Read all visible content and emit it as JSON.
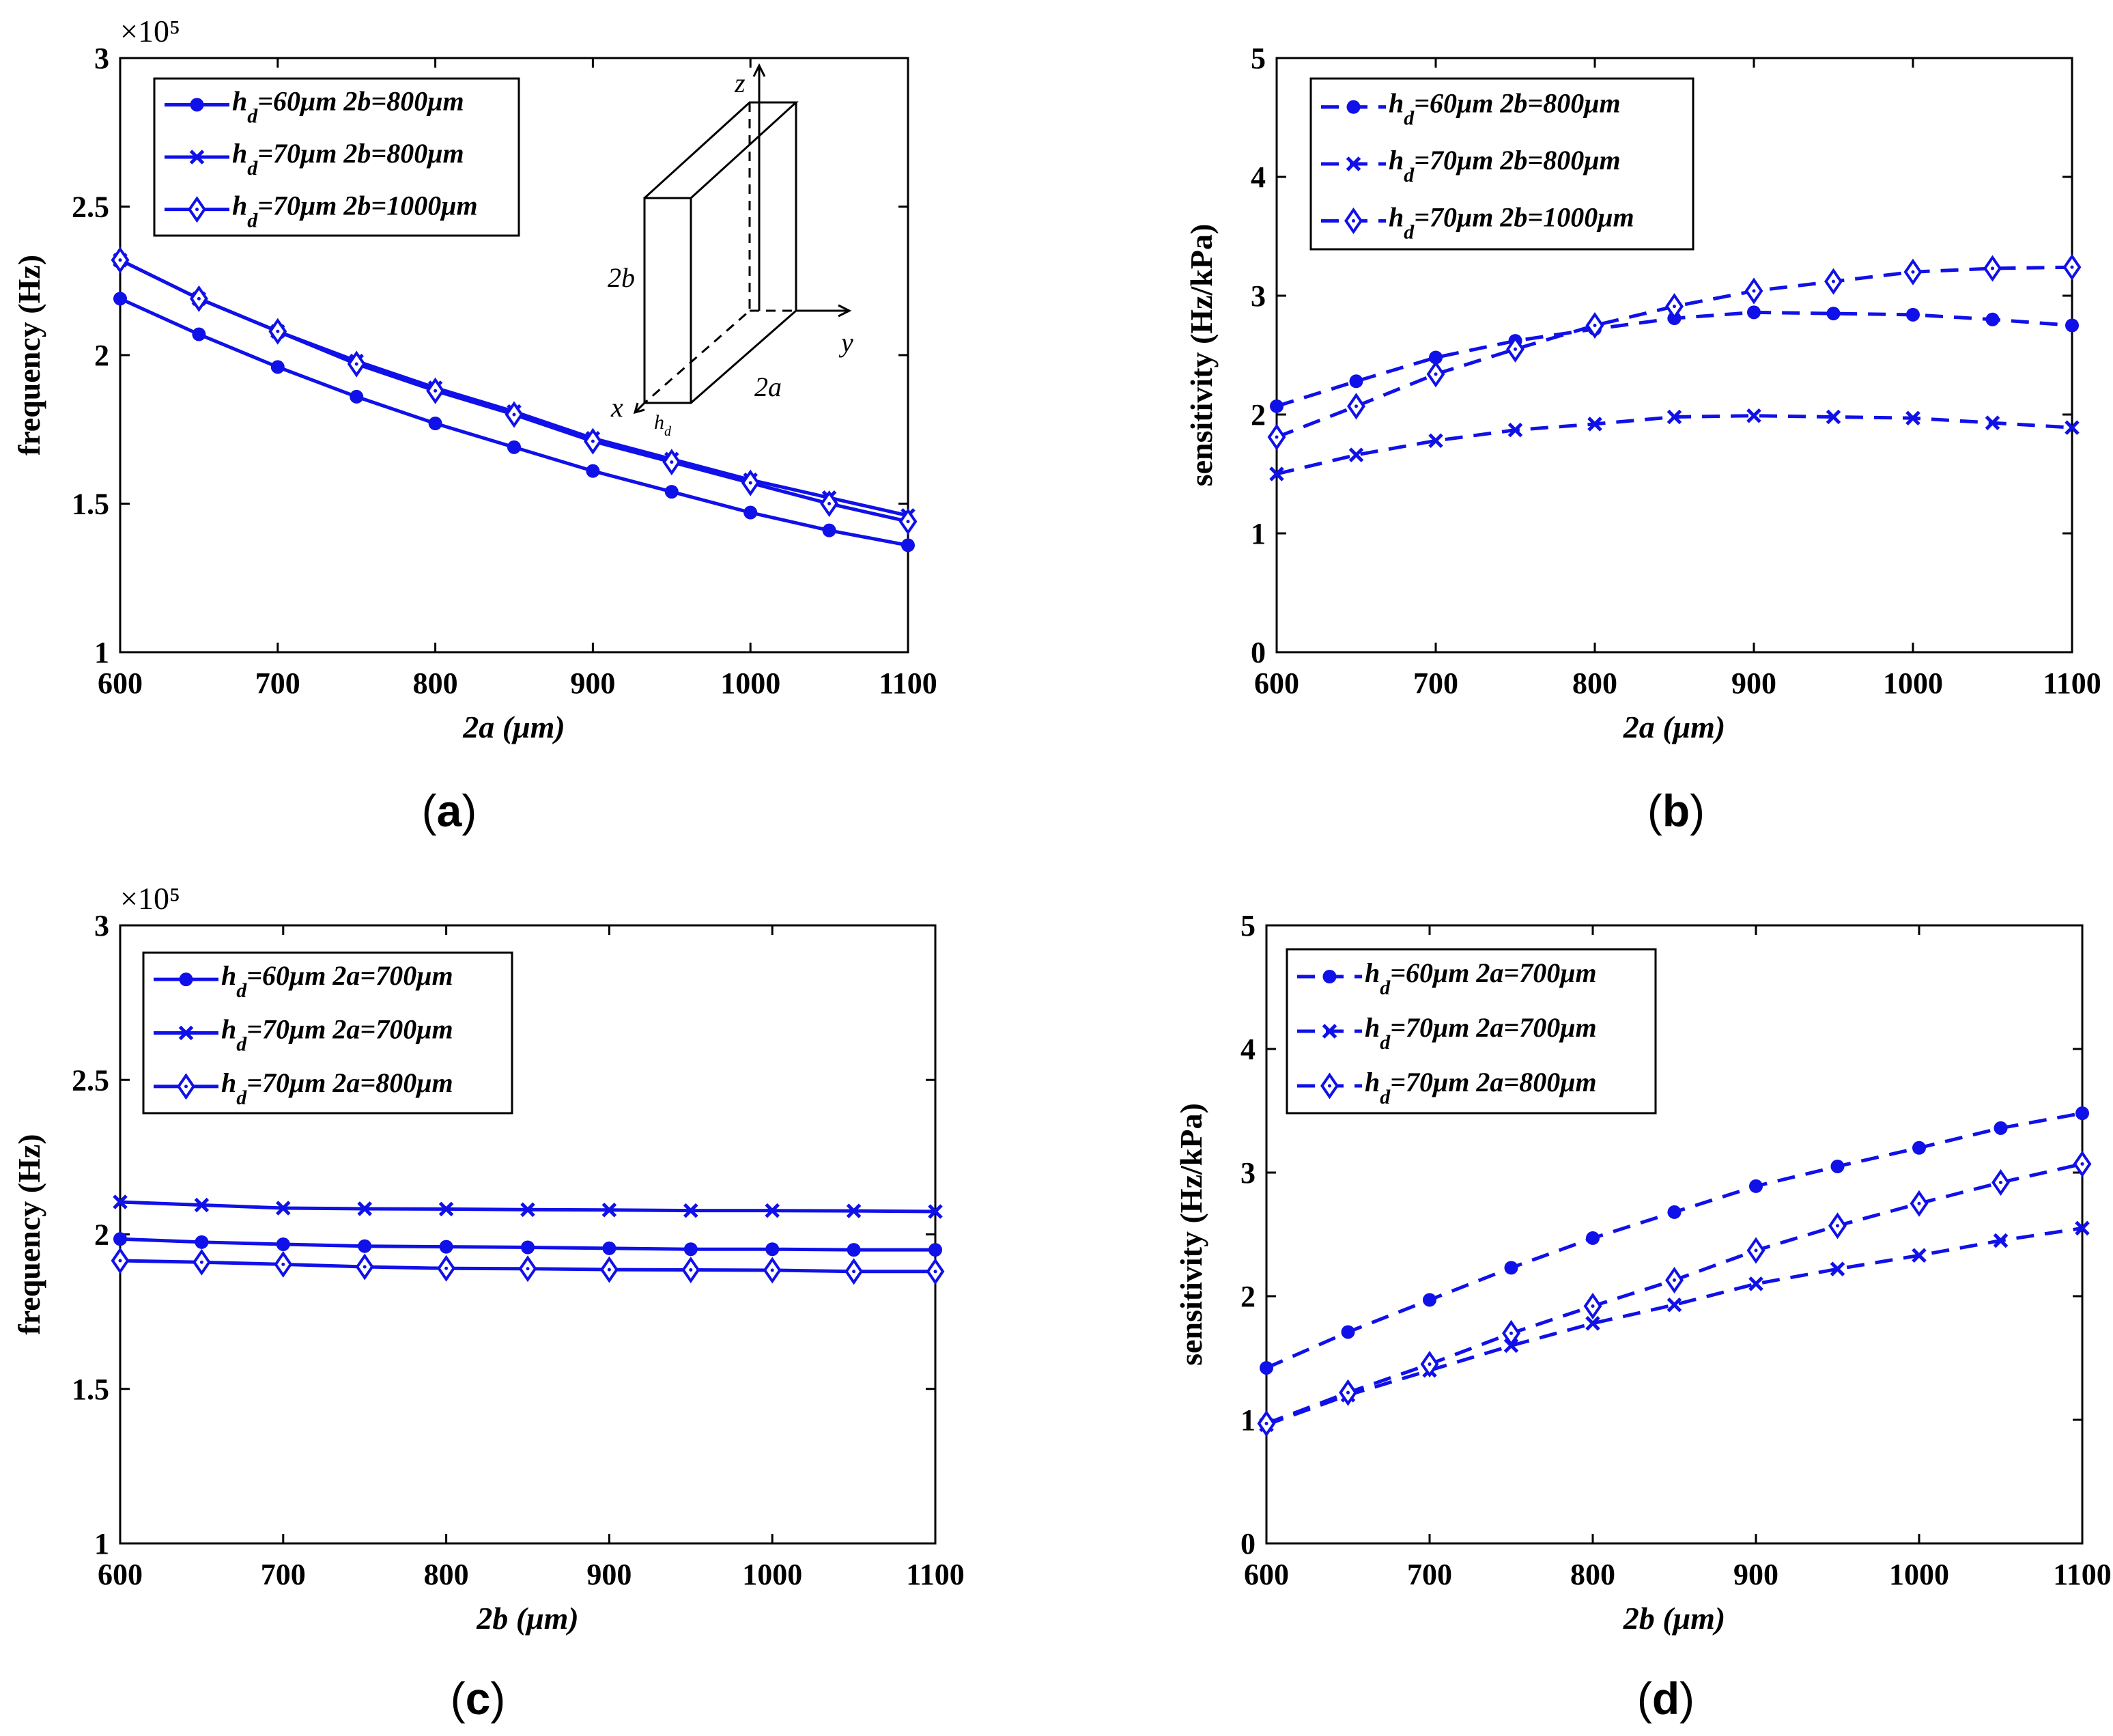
{
  "colors": {
    "series": "#1010e8",
    "axis": "#000000"
  },
  "chart_data": [
    {
      "panel": "a",
      "panel_label": "(a)",
      "type": "line",
      "line_style": "solid",
      "xlabel": "2a (μm)",
      "ylabel": "frequency (Hz)",
      "y_exponent_label": "×10⁵",
      "x": [
        600,
        650,
        700,
        750,
        800,
        850,
        900,
        950,
        1000,
        1050,
        1100
      ],
      "xlim": [
        600,
        1100
      ],
      "ylim": [
        1,
        3
      ],
      "xticks": [
        600,
        700,
        800,
        900,
        1000,
        1100
      ],
      "yticks": [
        1,
        1.5,
        2,
        2.5,
        3
      ],
      "ytick_labels": [
        "1",
        "1.5",
        "2",
        "2.5",
        "3"
      ],
      "legend_location": "top-left",
      "series": [
        {
          "label_main": "h",
          "label_sub": "d",
          "label_rest": "=60μm 2b=800μm",
          "marker": "dot",
          "values": [
            2.19,
            2.07,
            1.96,
            1.86,
            1.77,
            1.69,
            1.61,
            1.54,
            1.47,
            1.41,
            1.36
          ]
        },
        {
          "label_main": "h",
          "label_sub": "d",
          "label_rest": "=70μm 2b=800μm",
          "marker": "x",
          "values": [
            2.32,
            2.19,
            2.08,
            1.98,
            1.89,
            1.81,
            1.72,
            1.65,
            1.58,
            1.52,
            1.46
          ]
        },
        {
          "label_main": "h",
          "label_sub": "d",
          "label_rest": "=70μm 2b=1000μm",
          "marker": "diamond",
          "values": [
            2.32,
            2.19,
            2.08,
            1.97,
            1.88,
            1.8,
            1.71,
            1.64,
            1.57,
            1.5,
            1.44
          ]
        }
      ],
      "inset": {
        "label_z": "z",
        "label_y": "y",
        "label_x": "x",
        "label_2b": "2b",
        "label_2a": "2a",
        "label_hd": "h",
        "label_hd_sub": "d"
      }
    },
    {
      "panel": "b",
      "panel_label": "(b)",
      "type": "line",
      "line_style": "dashed",
      "xlabel": "2a (μm)",
      "ylabel": "sensitivity (Hz/kPa)",
      "x": [
        600,
        650,
        700,
        750,
        800,
        850,
        900,
        950,
        1000,
        1050,
        1100
      ],
      "xlim": [
        600,
        1100
      ],
      "ylim": [
        0,
        5
      ],
      "xticks": [
        600,
        700,
        800,
        900,
        1000,
        1100
      ],
      "yticks": [
        0,
        1,
        2,
        3,
        4,
        5
      ],
      "ytick_labels": [
        "0",
        "1",
        "2",
        "3",
        "4",
        "5"
      ],
      "legend_location": "top-left",
      "series": [
        {
          "label_main": "h",
          "label_sub": "d",
          "label_rest": "=60μm 2b=800μm",
          "marker": "dot",
          "values": [
            2.07,
            2.28,
            2.48,
            2.62,
            2.72,
            2.81,
            2.86,
            2.85,
            2.84,
            2.8,
            2.75
          ]
        },
        {
          "label_main": "h",
          "label_sub": "d",
          "label_rest": "=70μm 2b=800μm",
          "marker": "x",
          "values": [
            1.5,
            1.66,
            1.78,
            1.87,
            1.92,
            1.98,
            1.99,
            1.98,
            1.97,
            1.93,
            1.89
          ]
        },
        {
          "label_main": "h",
          "label_sub": "d",
          "label_rest": "=70μm 2b=1000μm",
          "marker": "diamond",
          "values": [
            1.81,
            2.07,
            2.34,
            2.55,
            2.75,
            2.91,
            3.04,
            3.12,
            3.2,
            3.23,
            3.24
          ]
        }
      ]
    },
    {
      "panel": "c",
      "panel_label": "(c)",
      "type": "line",
      "line_style": "solid",
      "xlabel": "2b (μm)",
      "ylabel": "frequency (Hz)",
      "y_exponent_label": "×10⁵",
      "x": [
        600,
        650,
        700,
        750,
        800,
        850,
        900,
        950,
        1000,
        1050,
        1100
      ],
      "xlim": [
        600,
        1100
      ],
      "ylim": [
        1,
        3
      ],
      "xticks": [
        600,
        700,
        800,
        900,
        1000,
        1100
      ],
      "yticks": [
        1,
        1.5,
        2,
        2.5,
        3
      ],
      "ytick_labels": [
        "1",
        "1.5",
        "2",
        "2.5",
        "3"
      ],
      "legend_location": "top-left",
      "series": [
        {
          "label_main": "h",
          "label_sub": "d",
          "label_rest": "=60μm 2a=700μm",
          "marker": "dot",
          "values": [
            1.985,
            1.975,
            1.968,
            1.962,
            1.96,
            1.958,
            1.955,
            1.952,
            1.952,
            1.95,
            1.95
          ]
        },
        {
          "label_main": "h",
          "label_sub": "d",
          "label_rest": "=70μm 2a=700μm",
          "marker": "x",
          "values": [
            2.105,
            2.095,
            2.085,
            2.083,
            2.082,
            2.08,
            2.079,
            2.077,
            2.077,
            2.076,
            2.074
          ]
        },
        {
          "label_main": "h",
          "label_sub": "d",
          "label_rest": "=70μm 2a=800μm",
          "marker": "diamond",
          "values": [
            1.915,
            1.91,
            1.903,
            1.895,
            1.89,
            1.889,
            1.886,
            1.885,
            1.884,
            1.88,
            1.88
          ]
        }
      ]
    },
    {
      "panel": "d",
      "panel_label": "(d)",
      "type": "line",
      "line_style": "dashed",
      "xlabel": "2b (μm)",
      "ylabel": "sensitivity (Hz/kPa)",
      "x": [
        600,
        650,
        700,
        750,
        800,
        850,
        900,
        950,
        1000,
        1050,
        1100
      ],
      "xlim": [
        600,
        1100
      ],
      "ylim": [
        0,
        5
      ],
      "xticks": [
        600,
        700,
        800,
        900,
        1000,
        1100
      ],
      "yticks": [
        0,
        1,
        2,
        3,
        4,
        5
      ],
      "ytick_labels": [
        "0",
        "1",
        "2",
        "3",
        "4",
        "5"
      ],
      "legend_location": "top-left",
      "series": [
        {
          "label_main": "h",
          "label_sub": "d",
          "label_rest": "=60μm 2a=700μm",
          "marker": "dot",
          "values": [
            1.42,
            1.71,
            1.97,
            2.23,
            2.47,
            2.68,
            2.89,
            3.05,
            3.2,
            3.36,
            3.48
          ]
        },
        {
          "label_main": "h",
          "label_sub": "d",
          "label_rest": "=70μm 2a=700μm",
          "marker": "x",
          "values": [
            0.96,
            1.2,
            1.4,
            1.6,
            1.78,
            1.93,
            2.1,
            2.22,
            2.33,
            2.45,
            2.55
          ]
        },
        {
          "label_main": "h",
          "label_sub": "d",
          "label_rest": "=70μm 2a=800μm",
          "marker": "diamond",
          "values": [
            0.97,
            1.22,
            1.45,
            1.7,
            1.92,
            2.13,
            2.37,
            2.57,
            2.75,
            2.92,
            3.07
          ]
        }
      ]
    }
  ]
}
